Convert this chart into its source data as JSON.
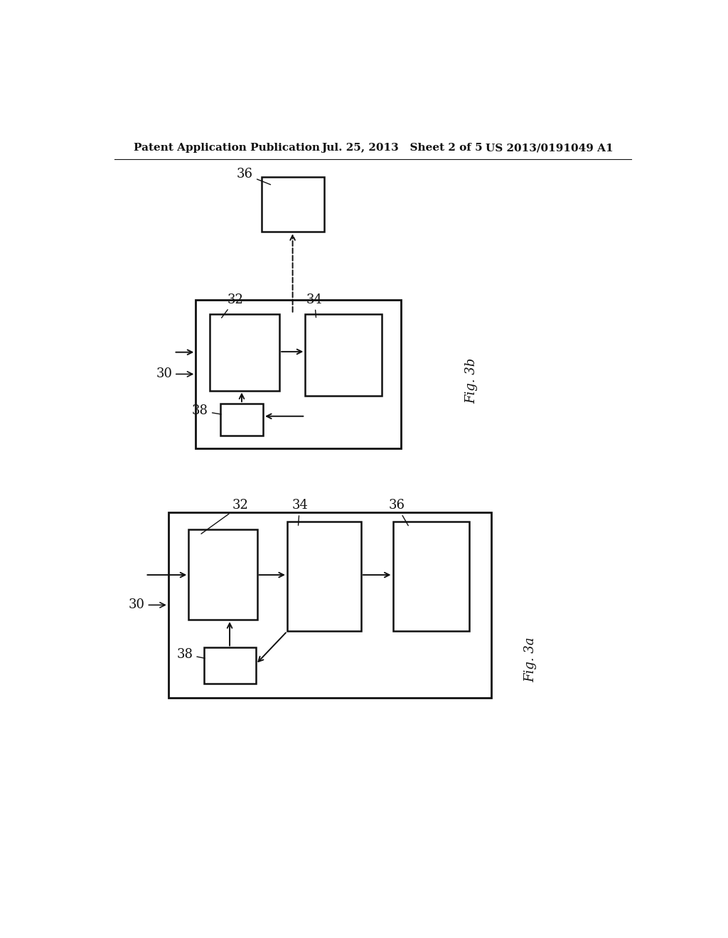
{
  "bg_color": "#ffffff",
  "header_left": "Patent Application Publication",
  "header_center": "Jul. 25, 2013   Sheet 2 of 5",
  "header_right": "US 2013/0191049 A1",
  "header_fontsize": 11
}
